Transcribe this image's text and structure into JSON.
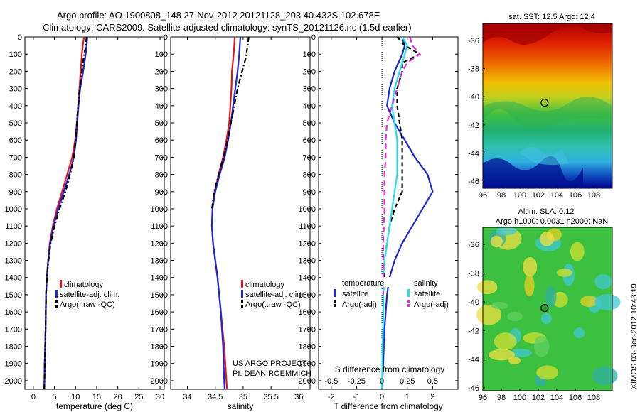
{
  "header": {
    "line1": "Argo profile: AO 1900808_148 27-Nov-2012 20121128_203 40.432S 102.678E",
    "line2": "Climatology: CARS2009. Satellite-adjusted climatology: synTS_20121126.nc (1.5d earlier)"
  },
  "depth_ticks": [
    0,
    100,
    200,
    300,
    400,
    500,
    600,
    700,
    800,
    900,
    1000,
    1100,
    1200,
    1300,
    1400,
    1500,
    1600,
    1700,
    1800,
    1900,
    2000
  ],
  "colors": {
    "climatology": "#e8141c",
    "satellite": "#1c28d8",
    "argo": "#000000",
    "satellite_s": "#22e0e8",
    "argo_s": "#e030e0"
  },
  "chart_data": [
    {
      "type": "line",
      "xlabel": "temperature (deg C)",
      "xlim": [
        -2,
        31
      ],
      "ylim": [
        2050,
        0
      ],
      "xticks": [
        0,
        5,
        10,
        15,
        20,
        25,
        30
      ],
      "legend": {
        "items": [
          "climatology",
          "satellite-adj. clim.",
          "Argo(..raw -QC)"
        ]
      },
      "series": [
        {
          "name": "climatology",
          "color": "#e8141c",
          "dash": "",
          "points": [
            [
              12.0,
              0
            ],
            [
              11.7,
              50
            ],
            [
              11.5,
              100
            ],
            [
              11.2,
              200
            ],
            [
              10.9,
              300
            ],
            [
              10.6,
              400
            ],
            [
              10.3,
              500
            ],
            [
              9.9,
              600
            ],
            [
              9.2,
              700
            ],
            [
              8.0,
              800
            ],
            [
              6.8,
              900
            ],
            [
              5.6,
              1000
            ],
            [
              4.6,
              1100
            ],
            [
              3.9,
              1200
            ],
            [
              3.5,
              1300
            ],
            [
              3.2,
              1400
            ],
            [
              3.0,
              1500
            ],
            [
              2.9,
              1700
            ],
            [
              2.7,
              1900
            ],
            [
              2.6,
              2050
            ]
          ]
        },
        {
          "name": "satellite-adj. clim.",
          "color": "#1c28d8",
          "dash": "",
          "points": [
            [
              12.8,
              0
            ],
            [
              12.6,
              50
            ],
            [
              12.4,
              100
            ],
            [
              11.8,
              200
            ],
            [
              11.1,
              300
            ],
            [
              10.7,
              400
            ],
            [
              10.4,
              500
            ],
            [
              10.1,
              600
            ],
            [
              9.6,
              700
            ],
            [
              8.5,
              800
            ],
            [
              7.2,
              900
            ],
            [
              5.9,
              1000
            ],
            [
              4.8,
              1100
            ],
            [
              4.0,
              1200
            ],
            [
              3.5,
              1300
            ],
            [
              3.2,
              1400
            ],
            [
              3.0,
              1500
            ],
            [
              2.9,
              1700
            ],
            [
              2.7,
              1900
            ],
            [
              2.6,
              2050
            ]
          ]
        },
        {
          "name": "Argo(..raw -QC)",
          "color": "#000000",
          "dash": "7,3,2,3",
          "points": [
            [
              12.6,
              0
            ],
            [
              12.4,
              60
            ],
            [
              12.0,
              100
            ],
            [
              11.5,
              200
            ],
            [
              11.0,
              300
            ],
            [
              10.6,
              400
            ],
            [
              10.3,
              500
            ],
            [
              10.0,
              600
            ],
            [
              9.6,
              700
            ],
            [
              8.7,
              800
            ],
            [
              7.6,
              900
            ],
            [
              6.2,
              1000
            ],
            [
              5.0,
              1100
            ],
            [
              4.1,
              1200
            ],
            [
              3.6,
              1300
            ],
            [
              3.2,
              1400
            ],
            [
              3.0,
              1500
            ],
            [
              2.9,
              1700
            ],
            [
              2.7,
              1900
            ],
            [
              2.6,
              2050
            ]
          ]
        }
      ]
    },
    {
      "type": "line",
      "xlabel": "salinity",
      "xlim": [
        33.7,
        36.2
      ],
      "ylim": [
        2050,
        0
      ],
      "xticks": [
        34,
        34.5,
        35,
        35.5,
        36
      ],
      "legend": {
        "items": [
          "climatology",
          "satellite-adj. clim.",
          "Argo(..raw -QC)"
        ]
      },
      "annotation": [
        "US ARGO PROJECT",
        "PI: DEAN ROEMMICH"
      ],
      "series": [
        {
          "name": "climatology",
          "color": "#e8141c",
          "dash": "",
          "points": [
            [
              34.85,
              0
            ],
            [
              34.83,
              100
            ],
            [
              34.8,
              200
            ],
            [
              34.79,
              300
            ],
            [
              34.77,
              400
            ],
            [
              34.75,
              500
            ],
            [
              34.7,
              600
            ],
            [
              34.64,
              700
            ],
            [
              34.56,
              800
            ],
            [
              34.49,
              900
            ],
            [
              34.45,
              1000
            ],
            [
              34.44,
              1100
            ],
            [
              34.46,
              1200
            ],
            [
              34.5,
              1300
            ],
            [
              34.54,
              1400
            ],
            [
              34.57,
              1500
            ],
            [
              34.6,
              1600
            ],
            [
              34.63,
              1700
            ],
            [
              34.66,
              1800
            ],
            [
              34.68,
              1900
            ],
            [
              34.7,
              2000
            ],
            [
              34.71,
              2050
            ]
          ]
        },
        {
          "name": "satellite-adj. clim.",
          "color": "#1c28d8",
          "dash": "",
          "points": [
            [
              34.95,
              0
            ],
            [
              34.93,
              100
            ],
            [
              34.9,
              200
            ],
            [
              34.86,
              300
            ],
            [
              34.82,
              400
            ],
            [
              34.78,
              500
            ],
            [
              34.73,
              600
            ],
            [
              34.67,
              700
            ],
            [
              34.58,
              800
            ],
            [
              34.5,
              900
            ],
            [
              34.45,
              1000
            ],
            [
              34.44,
              1100
            ],
            [
              34.46,
              1200
            ],
            [
              34.5,
              1300
            ],
            [
              34.54,
              1400
            ],
            [
              34.57,
              1500
            ],
            [
              34.6,
              1600
            ],
            [
              34.62,
              1700
            ],
            [
              34.64,
              1800
            ],
            [
              34.65,
              1900
            ],
            [
              34.66,
              2000
            ],
            [
              34.67,
              2050
            ]
          ]
        },
        {
          "name": "Argo(..raw -QC)",
          "color": "#000000",
          "dash": "7,3,2,3",
          "points": [
            [
              35.1,
              0
            ],
            [
              35.08,
              50
            ],
            [
              35.05,
              120
            ],
            [
              34.98,
              200
            ],
            [
              34.9,
              300
            ],
            [
              34.84,
              400
            ],
            [
              34.78,
              500
            ],
            [
              34.72,
              600
            ],
            [
              34.65,
              700
            ],
            [
              34.56,
              800
            ],
            [
              34.48,
              900
            ],
            [
              34.44,
              1000
            ]
          ]
        }
      ]
    },
    {
      "type": "line",
      "xlabel": "T difference from climatology",
      "xlabel_top": "S difference from climatology",
      "xlim": [
        -2.5,
        3
      ],
      "ylim": [
        2050,
        0
      ],
      "xticks": [
        -2,
        -1,
        0,
        1,
        2
      ],
      "xticks_top": [
        "-0.5",
        "-0.25",
        "0",
        "0.25",
        "0.5"
      ],
      "legend": {
        "col1_title": "temperature",
        "col2_title": "salinity",
        "items": [
          "satellite",
          "Argo(-adj)",
          "satellite",
          "Argo(-adj)"
        ]
      },
      "series": [
        {
          "name": "satellite",
          "color": "#1c28d8",
          "dash": "",
          "points": [
            [
              0.8,
              0
            ],
            [
              0.9,
              50
            ],
            [
              0.8,
              100
            ],
            [
              0.5,
              200
            ],
            [
              0.3,
              300
            ],
            [
              0.2,
              400
            ],
            [
              0.5,
              500
            ],
            [
              0.9,
              600
            ],
            [
              1.3,
              700
            ],
            [
              1.8,
              800
            ],
            [
              2.0,
              900
            ],
            [
              1.6,
              1000
            ],
            [
              1.2,
              1100
            ],
            [
              0.8,
              1200
            ],
            [
              0.5,
              1300
            ],
            [
              0.3,
              1400
            ],
            [
              0.2,
              1500
            ],
            [
              0.1,
              1700
            ],
            [
              0.05,
              1900
            ],
            [
              0.0,
              2050
            ]
          ]
        },
        {
          "name": "Argo(-adj)",
          "color": "#000000",
          "dash": "6,4",
          "points": [
            [
              0.6,
              0
            ],
            [
              0.9,
              50
            ],
            [
              1.5,
              100
            ],
            [
              0.8,
              150
            ],
            [
              0.8,
              200
            ],
            [
              0.6,
              300
            ],
            [
              0.6,
              400
            ],
            [
              0.7,
              500
            ],
            [
              0.8,
              600
            ],
            [
              0.8,
              700
            ],
            [
              0.8,
              800
            ],
            [
              0.8,
              900
            ],
            [
              0.5,
              1000
            ],
            [
              0.3,
              1100
            ],
            [
              0.2,
              1200
            ],
            [
              0.1,
              1300
            ],
            [
              0.05,
              1500
            ]
          ]
        },
        {
          "name": "satellite",
          "color": "#22e0e8",
          "dash": "",
          "points": [
            [
              0.8,
              0
            ],
            [
              1.0,
              50
            ],
            [
              0.9,
              100
            ],
            [
              0.7,
              200
            ],
            [
              0.5,
              300
            ],
            [
              0.4,
              400
            ],
            [
              0.5,
              500
            ],
            [
              0.6,
              600
            ],
            [
              0.6,
              700
            ],
            [
              0.6,
              800
            ],
            [
              0.5,
              900
            ],
            [
              0.4,
              1000
            ],
            [
              0.3,
              1100
            ],
            [
              0.2,
              1200
            ],
            [
              0.1,
              1300
            ],
            [
              0.05,
              1400
            ],
            [
              0.05,
              1600
            ],
            [
              0.0,
              2050
            ]
          ]
        },
        {
          "name": "Argo(-adj)",
          "color": "#e030e0",
          "dash": "8,5",
          "points": [
            [
              1.1,
              0
            ],
            [
              1.2,
              50
            ],
            [
              1.5,
              100
            ],
            [
              1.0,
              150
            ],
            [
              0.8,
              200
            ],
            [
              0.6,
              300
            ],
            [
              0.4,
              400
            ],
            [
              0.2,
              500
            ],
            [
              0.15,
              600
            ],
            [
              0.15,
              700
            ],
            [
              0.1,
              800
            ],
            [
              0.1,
              1000
            ],
            [
              0.05,
              1200
            ],
            [
              0.05,
              1500
            ]
          ]
        }
      ]
    },
    {
      "type": "heatmap",
      "title": "sat. SST: 12.5 Argo: 12.4",
      "xlim": [
        96,
        110
      ],
      "ylim": [
        -46.5,
        -34.8
      ],
      "xticks": [
        96,
        98,
        100,
        102,
        104,
        106,
        108
      ],
      "yticks": [
        -36,
        -38,
        -40,
        -42,
        -44,
        -46
      ],
      "marker": [
        102.678,
        -40.432
      ]
    },
    {
      "type": "heatmap",
      "title_line1": "Altim. SLA: 0.12",
      "title_line2": "Argo h1000: 0.0031 h2000: NaN",
      "xlim": [
        96,
        110
      ],
      "ylim": [
        -46.2,
        -34.8
      ],
      "xticks": [
        96,
        98,
        100,
        102,
        104,
        106,
        108
      ],
      "yticks": [
        -36,
        -38,
        -40,
        -42,
        -44,
        -46
      ],
      "marker": [
        102.678,
        -40.432
      ]
    }
  ],
  "footer": {
    "stamp": "©IMOS 03-Dec-2012 10:43:19"
  }
}
